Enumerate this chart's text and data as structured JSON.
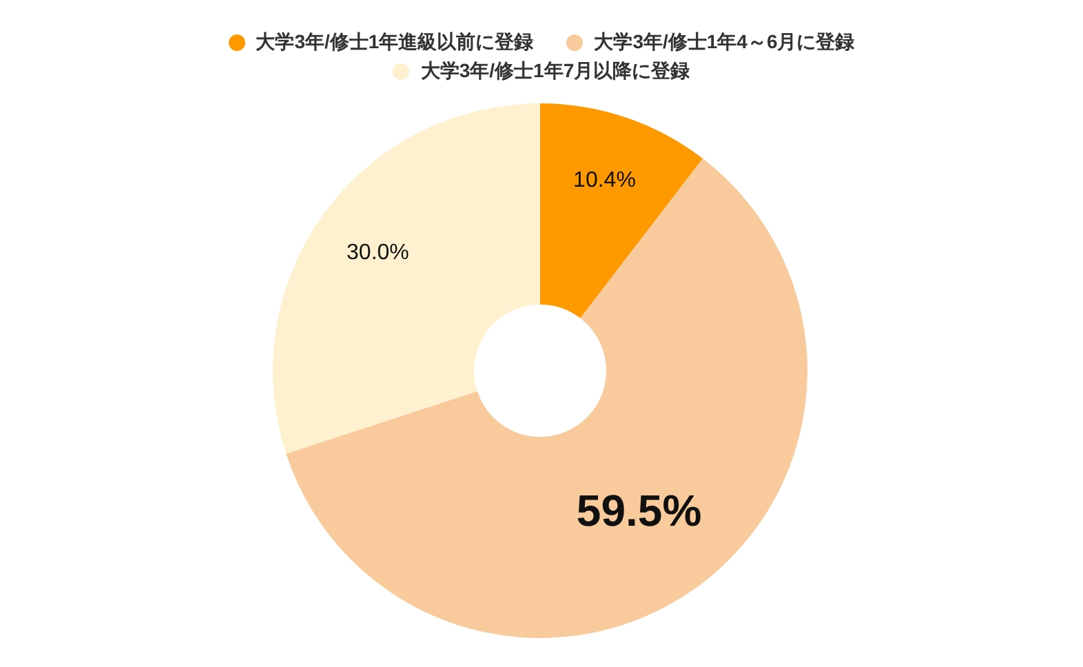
{
  "chart_data": {
    "type": "donut",
    "categories": [
      "大学3年/修士1年進級以前に登録",
      "大学3年/修士1年4～6月に登録",
      "大学3年/修士1年7月以降に登録"
    ],
    "values": [
      10.4,
      59.5,
      30.0
    ],
    "colors": [
      "#ff9900",
      "#f8ca9c",
      "#fff0cf"
    ],
    "value_labels": [
      "10.4%",
      "59.5%",
      "30.0%"
    ],
    "legend": "top"
  }
}
